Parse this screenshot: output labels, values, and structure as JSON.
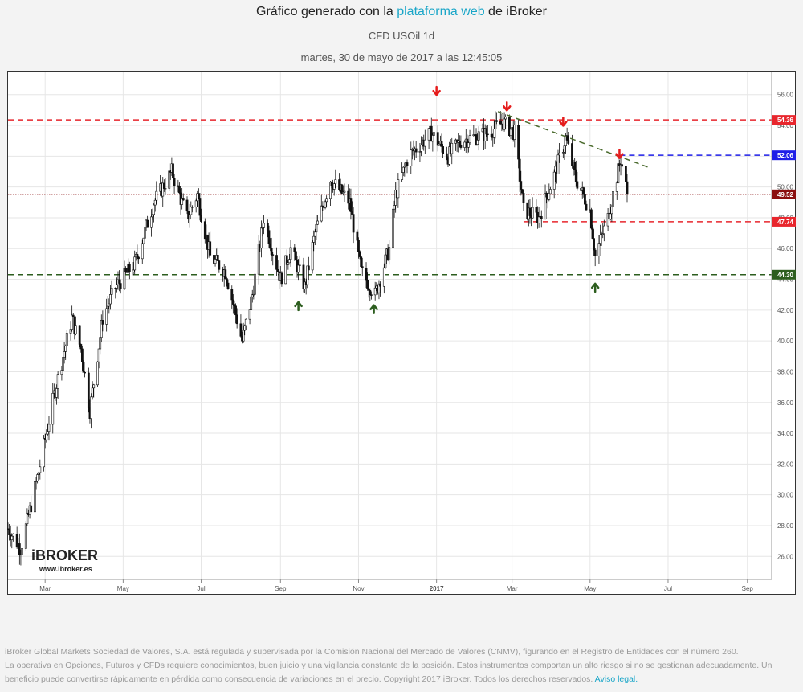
{
  "header": {
    "title_prefix": "Gráfico generado con la ",
    "title_link": "plataforma web",
    "title_suffix": " de iBroker",
    "instrument": "CFD USOil 1d",
    "timestamp": "martes, 30 de mayo de 2017 a las 12:45:05"
  },
  "logo": {
    "brand": "iBROKER",
    "url": "www.ibroker.es"
  },
  "footer": {
    "line1": "iBroker Global Markets Sociedad de Valores, S.A. está regulada y supervisada por la Comisión Nacional del Mercado de Valores (CNMV), figurando en el Registro de Entidades con el número 260.",
    "line2": "La operativa en Opciones, Futuros y CFDs requiere conocimientos, buen juicio y una vigilancia constante de la posición. Estos instrumentos comportan un alto riesgo si no se gestionan adecuadamente. Un beneficio puede convertirse rápidamente en pérdida como consecuencia de variaciones en el precio. Copyright 2017 iBroker. Todos los derechos reservados.",
    "link": "Aviso legal."
  },
  "colors": {
    "candle": "#111111",
    "resistance": "#e8262d",
    "support": "#2d5e1f",
    "blue_level": "#1f1fe8",
    "current": "#8b1010",
    "trend": "#4b6b2e",
    "grid": "#e6e6e6"
  },
  "chart_data": {
    "type": "candlestick",
    "title": "CFD USOil 1d",
    "x_ticks": [
      "Mar",
      "May",
      "Jul",
      "Sep",
      "Nov",
      "2017",
      "Mar",
      "May",
      "Jul",
      "Sep"
    ],
    "x_range": [
      "2016-02-01",
      "2017-09-20"
    ],
    "y_range": [
      24.5,
      57.5
    ],
    "y_ticks": [
      26,
      28,
      30,
      32,
      34,
      36,
      38,
      40,
      42,
      44,
      46,
      48,
      50,
      52,
      54,
      56
    ],
    "grid": true,
    "price_path": [
      [
        "2016-02-01",
        27.8
      ],
      [
        "2016-02-11",
        26.5
      ],
      [
        "2016-02-25",
        31.5
      ],
      [
        "2016-03-08",
        36.5
      ],
      [
        "2016-03-22",
        41.5
      ],
      [
        "2016-03-29",
        39.5
      ],
      [
        "2016-04-05",
        35.5
      ],
      [
        "2016-04-15",
        41.5
      ],
      [
        "2016-04-25",
        43.5
      ],
      [
        "2016-05-10",
        45.0
      ],
      [
        "2016-05-25",
        49.0
      ],
      [
        "2016-06-08",
        51.0
      ],
      [
        "2016-06-20",
        48.0
      ],
      [
        "2016-06-28",
        49.5
      ],
      [
        "2016-07-08",
        45.5
      ],
      [
        "2016-07-20",
        44.5
      ],
      [
        "2016-08-02",
        40.0
      ],
      [
        "2016-08-10",
        43.0
      ],
      [
        "2016-08-19",
        48.0
      ],
      [
        "2016-09-01",
        44.0
      ],
      [
        "2016-09-09",
        46.0
      ],
      [
        "2016-09-20",
        43.5
      ],
      [
        "2016-09-28",
        47.0
      ],
      [
        "2016-10-10",
        50.5
      ],
      [
        "2016-10-25",
        49.0
      ],
      [
        "2016-11-03",
        44.5
      ],
      [
        "2016-11-14",
        43.0
      ],
      [
        "2016-11-25",
        46.0
      ],
      [
        "2016-11-30",
        49.5
      ],
      [
        "2016-12-10",
        52.0
      ],
      [
        "2016-12-28",
        53.5
      ],
      [
        "2017-01-10",
        52.0
      ],
      [
        "2017-01-20",
        53.0
      ],
      [
        "2017-02-10",
        53.5
      ],
      [
        "2017-02-22",
        54.2
      ],
      [
        "2017-03-03",
        53.5
      ],
      [
        "2017-03-10",
        48.5
      ],
      [
        "2017-03-22",
        48.0
      ],
      [
        "2017-04-04",
        51.0
      ],
      [
        "2017-04-12",
        53.2
      ],
      [
        "2017-04-20",
        50.5
      ],
      [
        "2017-05-01",
        48.5
      ],
      [
        "2017-05-05",
        45.5
      ],
      [
        "2017-05-15",
        48.0
      ],
      [
        "2017-05-25",
        51.8
      ],
      [
        "2017-05-30",
        49.6
      ]
    ],
    "levels": [
      {
        "label": "54.36",
        "value": 54.36,
        "style": "resistance",
        "from": "2016-02-01",
        "to": "2017-09-20"
      },
      {
        "label": "52.06",
        "value": 52.06,
        "style": "blue_level",
        "from": "2017-05-24",
        "to": "2017-09-20"
      },
      {
        "label": "49.52",
        "value": 49.52,
        "style": "current",
        "from": "2016-02-01",
        "to": "2017-09-20"
      },
      {
        "label": "47.74",
        "value": 47.74,
        "style": "resistance",
        "from": "2017-03-10",
        "to": "2017-09-20"
      },
      {
        "label": "44.30",
        "value": 44.3,
        "style": "support",
        "from": "2016-02-01",
        "to": "2017-09-20"
      }
    ],
    "trendline": {
      "from": [
        "2017-02-18",
        54.9
      ],
      "to": [
        "2017-06-15",
        51.3
      ]
    },
    "arrows_down": [
      {
        "date": "2017-01-01",
        "price": 56.5
      },
      {
        "date": "2017-02-25",
        "price": 55.5
      },
      {
        "date": "2017-04-10",
        "price": 54.5
      },
      {
        "date": "2017-05-24",
        "price": 52.4
      }
    ],
    "arrows_up": [
      {
        "date": "2016-09-15",
        "price": 42.0
      },
      {
        "date": "2016-11-13",
        "price": 41.8
      },
      {
        "date": "2017-05-05",
        "price": 43.2
      }
    ]
  }
}
